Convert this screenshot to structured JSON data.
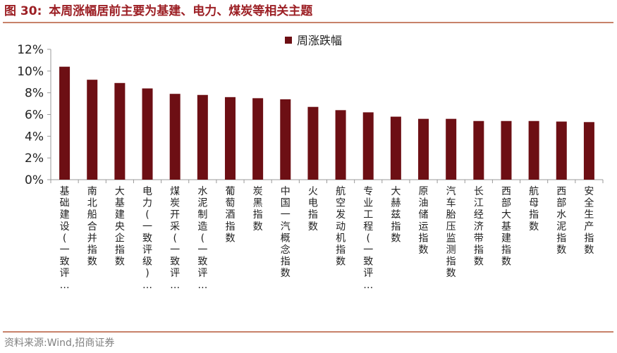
{
  "figure": {
    "title_prefix": "图 30:",
    "title_text": "本周涨幅居前主要为基建、电力、煤炭等相关主题",
    "source": "资料来源:Wind,招商证券"
  },
  "colors": {
    "title": "#9c1f24",
    "bar": "#6d0f14",
    "rule": "#c8826a"
  },
  "chart_data": {
    "type": "bar",
    "title": "",
    "xlabel": "",
    "ylabel": "",
    "ylim": [
      0,
      12
    ],
    "yticks": [
      0,
      2,
      4,
      6,
      8,
      10,
      12
    ],
    "ytick_format": "percent",
    "legend": "top-center",
    "grid": false,
    "categories": [
      "基础建设(一致评…",
      "南北船合并指数",
      "大基建央企指数",
      "电力(一致评级)…",
      "煤炭开采(一致评…",
      "水泥制造(一致评…",
      "葡萄酒指数",
      "炭黑指数",
      "中国一汽概念指数",
      "火电指数",
      "航空发动机指数",
      "专业工程(一致评…",
      "大赫兹指数",
      "原油储运指数",
      "汽车胎压监测指数",
      "长江经济带指数",
      "西部大基建指数",
      "航母指数",
      "西部水泥指数",
      "安全生产指数"
    ],
    "series": [
      {
        "name": "周涨跌幅",
        "values": [
          10.4,
          9.2,
          8.9,
          8.4,
          7.9,
          7.8,
          7.6,
          7.5,
          7.4,
          6.7,
          6.4,
          6.2,
          5.8,
          5.6,
          5.6,
          5.4,
          5.4,
          5.4,
          5.35,
          5.3
        ]
      }
    ]
  }
}
